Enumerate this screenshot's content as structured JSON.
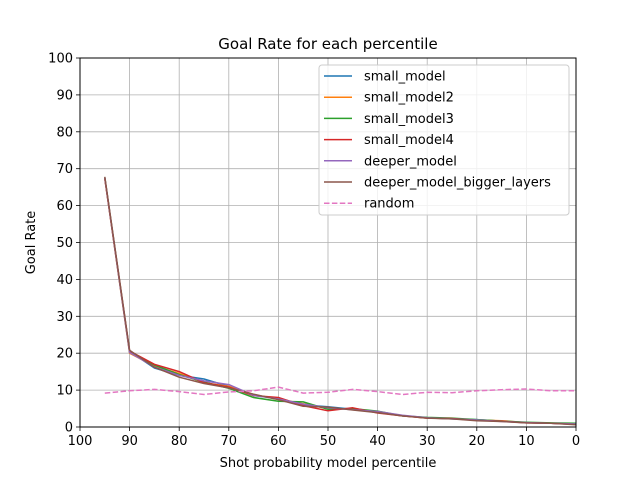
{
  "chart_data": {
    "type": "line",
    "title": "Goal Rate for each percentile",
    "xlabel": "Shot probability model percentile",
    "ylabel": "Goal Rate",
    "xlim": [
      100,
      0
    ],
    "ylim": [
      0,
      100
    ],
    "xticks": [
      100,
      90,
      80,
      70,
      60,
      50,
      40,
      30,
      20,
      10,
      0
    ],
    "yticks": [
      0,
      10,
      20,
      30,
      40,
      50,
      60,
      70,
      80,
      90,
      100
    ],
    "grid": true,
    "legend_position": "upper right",
    "x": [
      95,
      90,
      85,
      80,
      75,
      70,
      65,
      60,
      55,
      50,
      45,
      40,
      35,
      30,
      25,
      20,
      15,
      10,
      5,
      0
    ],
    "series": [
      {
        "name": "small_model",
        "color": "#1f77b4",
        "style": "solid",
        "values": [
          67.5,
          20.5,
          16.0,
          14.0,
          13.0,
          11.0,
          8.5,
          7.8,
          6.0,
          5.5,
          4.8,
          4.0,
          3.0,
          2.5,
          2.2,
          2.0,
          1.6,
          1.2,
          1.0,
          0.7
        ]
      },
      {
        "name": "small_model2",
        "color": "#ff7f0e",
        "style": "solid",
        "values": [
          67.3,
          20.0,
          16.5,
          14.5,
          12.0,
          11.0,
          8.8,
          7.5,
          6.3,
          5.0,
          4.9,
          4.0,
          3.1,
          2.4,
          2.3,
          1.9,
          1.7,
          1.2,
          1.0,
          0.8
        ]
      },
      {
        "name": "small_model3",
        "color": "#2ca02c",
        "style": "solid",
        "values": [
          67.6,
          20.3,
          16.8,
          14.2,
          12.2,
          10.5,
          8.0,
          7.0,
          6.8,
          4.8,
          5.0,
          4.3,
          3.0,
          2.6,
          2.4,
          2.0,
          1.6,
          1.3,
          1.1,
          1.0
        ]
      },
      {
        "name": "small_model4",
        "color": "#d62728",
        "style": "solid",
        "values": [
          67.4,
          20.6,
          17.0,
          15.0,
          12.0,
          10.8,
          8.5,
          8.0,
          5.8,
          4.4,
          5.2,
          3.8,
          3.0,
          2.4,
          2.3,
          1.8,
          1.6,
          1.1,
          1.0,
          0.7
        ]
      },
      {
        "name": "deeper_model",
        "color": "#9467bd",
        "style": "solid",
        "values": [
          67.5,
          20.2,
          16.3,
          14.0,
          12.5,
          11.5,
          8.6,
          7.6,
          6.2,
          5.2,
          4.7,
          4.2,
          3.2,
          2.5,
          2.2,
          1.9,
          1.5,
          1.2,
          1.0,
          0.8
        ]
      },
      {
        "name": "deeper_model_bigger_layers",
        "color": "#8c564b",
        "style": "solid",
        "values": [
          67.8,
          20.8,
          16.2,
          13.5,
          11.8,
          10.6,
          8.9,
          7.4,
          5.6,
          5.4,
          4.6,
          3.9,
          3.0,
          2.4,
          2.2,
          1.7,
          1.5,
          1.1,
          1.0,
          0.6
        ]
      },
      {
        "name": "random",
        "color": "#e377c2",
        "style": "dashed",
        "values": [
          9.2,
          9.8,
          10.2,
          9.6,
          8.8,
          9.5,
          9.8,
          10.8,
          9.2,
          9.4,
          10.2,
          9.6,
          8.8,
          9.4,
          9.3,
          9.8,
          10.1,
          10.3,
          9.8,
          9.8
        ]
      }
    ]
  }
}
